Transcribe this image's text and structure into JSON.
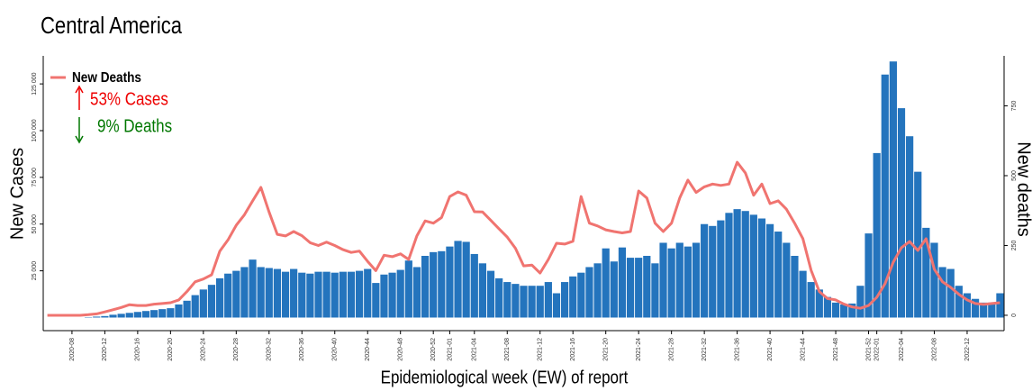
{
  "chart_data": {
    "type": "bar",
    "title": "Central America",
    "x_label": "Epidemiological week (EW) of report",
    "y_label": "New Cases",
    "y2_label": "New deaths",
    "annotations": [
      "53% Cases",
      "9% Deaths"
    ],
    "categories": [
      null,
      null,
      null,
      "2020-08",
      null,
      null,
      null,
      "2020-12",
      null,
      null,
      null,
      "2020-16",
      null,
      null,
      null,
      "2020-20",
      null,
      null,
      null,
      "2020-24",
      null,
      null,
      null,
      "2020-28",
      null,
      null,
      null,
      "2020-32",
      null,
      null,
      null,
      "2020-36",
      null,
      null,
      null,
      "2020-40",
      null,
      null,
      null,
      "2020-44",
      null,
      null,
      null,
      "2020-48",
      null,
      null,
      null,
      "2020-52",
      null,
      "2021-01",
      null,
      null,
      "2021-04",
      null,
      null,
      null,
      "2021-08",
      null,
      null,
      null,
      "2021-12",
      null,
      null,
      null,
      "2021-16",
      null,
      null,
      null,
      "2021-20",
      null,
      null,
      null,
      "2021-24",
      null,
      null,
      null,
      "2021-28",
      null,
      null,
      null,
      "2021-32",
      null,
      null,
      null,
      "2021-36",
      null,
      null,
      null,
      "2021-40",
      null,
      null,
      null,
      "2021-44",
      null,
      null,
      null,
      "2021-48",
      null,
      null,
      null,
      "2021-52",
      "2022-01",
      null,
      null,
      "2022-04",
      null,
      null,
      null,
      "2022-08",
      null,
      null,
      null,
      "2022-12",
      null,
      null,
      null,
      null
    ],
    "series": [
      {
        "name": "New Cases",
        "type": "bar",
        "color": "#2474bd",
        "values": [
          0,
          0,
          0,
          0,
          0,
          200,
          500,
          800,
          1500,
          2000,
          2500,
          3000,
          3500,
          4000,
          4500,
          5000,
          7000,
          9000,
          12000,
          15000,
          17500,
          21000,
          23500,
          25000,
          27000,
          31000,
          27000,
          26500,
          26000,
          24500,
          26000,
          24000,
          23500,
          24500,
          24500,
          24000,
          24500,
          24500,
          25000,
          26000,
          18500,
          23000,
          24000,
          25500,
          30500,
          27000,
          33000,
          35000,
          35500,
          38000,
          41000,
          40500,
          34000,
          29000,
          25000,
          21000,
          19000,
          18000,
          17000,
          17000,
          17000,
          19000,
          13000,
          19000,
          22000,
          24000,
          27000,
          29000,
          37000,
          30000,
          37500,
          32000,
          32000,
          33000,
          29000,
          40000,
          37000,
          40000,
          38000,
          40000,
          50000,
          49000,
          52000,
          56000,
          58000,
          57000,
          55000,
          53000,
          50000,
          46000,
          40000,
          33000,
          25000,
          19000,
          15000,
          11000,
          8000,
          7000,
          7500,
          17000,
          45000,
          88000,
          130000,
          137000,
          112000,
          97000,
          78000,
          48000,
          40000,
          27000,
          26000,
          17000,
          13000,
          10000,
          8000,
          8000,
          13000
        ]
      },
      {
        "name": "New Deaths",
        "type": "line",
        "axis": "y2",
        "color": "#f07470",
        "values": [
          0,
          0,
          0,
          0,
          0,
          2,
          5,
          12,
          20,
          28,
          38,
          35,
          35,
          40,
          42,
          45,
          55,
          85,
          120,
          130,
          145,
          230,
          270,
          322,
          360,
          410,
          458,
          370,
          290,
          284,
          300,
          285,
          260,
          250,
          262,
          250,
          235,
          225,
          230,
          193,
          160,
          215,
          210,
          220,
          200,
          284,
          338,
          330,
          350,
          425,
          442,
          430,
          371,
          370,
          340,
          310,
          280,
          240,
          177,
          180,
          151,
          200,
          258,
          255,
          265,
          425,
          330,
          320,
          306,
          300,
          295,
          300,
          445,
          420,
          330,
          300,
          330,
          420,
          484,
          440,
          460,
          470,
          465,
          470,
          548,
          510,
          430,
          470,
          400,
          410,
          380,
          330,
          274,
          161,
          85,
          60,
          55,
          40,
          30,
          25,
          35,
          64,
          113,
          190,
          242,
          264,
          232,
          274,
          165,
          120,
          100,
          75,
          55,
          42,
          39,
          42,
          45
        ]
      }
    ],
    "ylim": [
      -7000,
      140000
    ],
    "yticks": [
      {
        "value": 25000,
        "label": "25 000"
      },
      {
        "value": 50000,
        "label": "50 000"
      },
      {
        "value": 75000,
        "label": "75 000"
      },
      {
        "value": 100000,
        "label": "100 000"
      },
      {
        "value": 125000,
        "label": "125 000"
      }
    ],
    "y2lim": [
      -55,
      929
    ],
    "y2ticks": [
      0,
      250,
      500,
      750
    ]
  }
}
